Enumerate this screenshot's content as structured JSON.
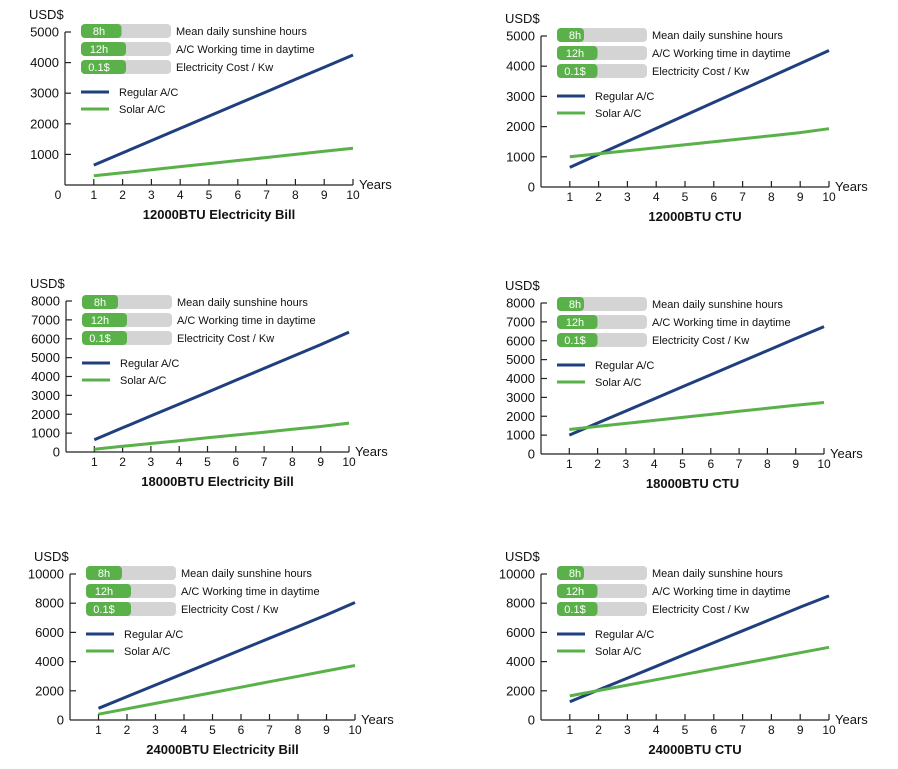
{
  "colors": {
    "regular": "#1f3f7f",
    "solar": "#5ab14a",
    "pill_bg": "#d4d4d4",
    "pill_fill": "#5ab14a"
  },
  "chart_data": [
    {
      "type": "line",
      "title": "12000BTU Electricity Bill",
      "ylabel": "USD$",
      "xlabel": "Years",
      "x": [
        1,
        2,
        3,
        4,
        5,
        6,
        7,
        8,
        9,
        10
      ],
      "xlim": [
        0,
        10
      ],
      "ylim": [
        0,
        5000
      ],
      "yticks": [
        1000,
        2000,
        3000,
        4000,
        5000
      ],
      "ytick_labels": [
        "1000",
        "2000",
        "3000",
        "4000",
        "5000"
      ],
      "xtick_labels": [
        "0",
        "1",
        "2",
        "3",
        "4",
        "5",
        "6",
        "7",
        "8",
        "9",
        "10"
      ],
      "legend": {
        "params": [
          {
            "value": "8h",
            "label": "Mean daily sunshine hours",
            "fill": 0.45
          },
          {
            "value": "12h",
            "label": "A/C Working time in daytime",
            "fill": 0.5
          },
          {
            "value": "0.1$",
            "label": "Electricity Cost / Kw",
            "fill": 0.5
          }
        ],
        "series_labels": [
          "Regular A/C",
          "Solar A/C"
        ]
      },
      "series": [
        {
          "name": "Regular A/C",
          "values": [
            650,
            1050,
            1450,
            1850,
            2250,
            2650,
            3050,
            3450,
            3850,
            4250
          ]
        },
        {
          "name": "Solar A/C",
          "values": [
            300,
            400,
            500,
            600,
            700,
            800,
            900,
            1000,
            1100,
            1200
          ]
        }
      ]
    },
    {
      "type": "line",
      "title": "12000BTU CTU",
      "ylabel": "USD$",
      "xlabel": "Years",
      "x": [
        1,
        2,
        3,
        4,
        5,
        6,
        7,
        8,
        9,
        10
      ],
      "xlim": [
        0,
        10
      ],
      "ylim": [
        0,
        5000
      ],
      "yticks": [
        0,
        1000,
        2000,
        3000,
        4000,
        5000
      ],
      "ytick_labels": [
        "0",
        "1000",
        "2000",
        "3000",
        "4000",
        "5000"
      ],
      "xtick_labels": [
        "1",
        "2",
        "3",
        "4",
        "5",
        "6",
        "7",
        "8",
        "9",
        "10"
      ],
      "legend": {
        "params": [
          {
            "value": "8h",
            "label": "Mean daily sunshine hours",
            "fill": 0.3
          },
          {
            "value": "12h",
            "label": "A/C Working time in daytime",
            "fill": 0.45
          },
          {
            "value": "0.1$",
            "label": "Electricity Cost / Kw",
            "fill": 0.45
          }
        ],
        "series_labels": [
          "Regular A/C",
          "Solar A/C"
        ]
      },
      "series": [
        {
          "name": "Regular A/C",
          "values": [
            650,
            1080,
            1510,
            1940,
            2370,
            2800,
            3230,
            3660,
            4090,
            4520
          ]
        },
        {
          "name": "Solar A/C",
          "values": [
            1000,
            1100,
            1200,
            1300,
            1400,
            1500,
            1600,
            1700,
            1800,
            1930
          ]
        }
      ]
    },
    {
      "type": "line",
      "title": "18000BTU Electricity Bill",
      "ylabel": "USD$",
      "xlabel": "Years",
      "x": [
        1,
        2,
        3,
        4,
        5,
        6,
        7,
        8,
        9,
        10
      ],
      "xlim": [
        0,
        10
      ],
      "ylim": [
        0,
        8000
      ],
      "yticks": [
        0,
        1000,
        2000,
        3000,
        4000,
        5000,
        6000,
        7000,
        8000
      ],
      "ytick_labels": [
        "0",
        "1000",
        "2000",
        "3000",
        "4000",
        "5000",
        "6000",
        "7000",
        "8000"
      ],
      "xtick_labels": [
        "1",
        "2",
        "3",
        "4",
        "5",
        "6",
        "7",
        "8",
        "9",
        "10"
      ],
      "legend": {
        "params": [
          {
            "value": "8h",
            "label": "Mean daily sunshine hours",
            "fill": 0.4
          },
          {
            "value": "12h",
            "label": "A/C Working time in daytime",
            "fill": 0.5
          },
          {
            "value": "0.1$",
            "label": "Electricity Cost / Kw",
            "fill": 0.5
          }
        ],
        "series_labels": [
          "Regular A/C",
          "Solar A/C"
        ]
      },
      "series": [
        {
          "name": "Regular A/C",
          "values": [
            650,
            1280,
            1910,
            2540,
            3170,
            3800,
            4430,
            5060,
            5690,
            6350
          ]
        },
        {
          "name": "Solar A/C",
          "values": [
            150,
            300,
            450,
            600,
            750,
            900,
            1050,
            1200,
            1350,
            1530
          ]
        }
      ]
    },
    {
      "type": "line",
      "title": "18000BTU CTU",
      "ylabel": "USD$",
      "xlabel": "Years",
      "x": [
        1,
        2,
        3,
        4,
        5,
        6,
        7,
        8,
        9,
        10
      ],
      "xlim": [
        0,
        10
      ],
      "ylim": [
        0,
        8000
      ],
      "yticks": [
        0,
        1000,
        2000,
        3000,
        4000,
        5000,
        6000,
        7000,
        8000
      ],
      "ytick_labels": [
        "0",
        "1000",
        "2000",
        "3000",
        "4000",
        "5000",
        "6000",
        "7000",
        "8000"
      ],
      "xtick_labels": [
        "1",
        "2",
        "3",
        "4",
        "5",
        "6",
        "7",
        "8",
        "9",
        "10"
      ],
      "legend": {
        "params": [
          {
            "value": "8h",
            "label": "Mean daily sunshine hours",
            "fill": 0.3
          },
          {
            "value": "12h",
            "label": "A/C Working time in daytime",
            "fill": 0.45
          },
          {
            "value": "0.1$",
            "label": "Electricity Cost / Kw",
            "fill": 0.45
          }
        ],
        "series_labels": [
          "Regular A/C",
          "Solar A/C"
        ]
      },
      "series": [
        {
          "name": "Regular A/C",
          "values": [
            1000,
            1640,
            2280,
            2920,
            3560,
            4200,
            4840,
            5480,
            6120,
            6750
          ]
        },
        {
          "name": "Solar A/C",
          "values": [
            1300,
            1460,
            1620,
            1780,
            1940,
            2100,
            2260,
            2420,
            2580,
            2730
          ]
        }
      ]
    },
    {
      "type": "line",
      "title": "24000BTU Electricity Bill",
      "ylabel": "USD$",
      "xlabel": "Years",
      "x": [
        1,
        2,
        3,
        4,
        5,
        6,
        7,
        8,
        9,
        10
      ],
      "xlim": [
        0,
        10
      ],
      "ylim": [
        0,
        10000
      ],
      "yticks": [
        0,
        2000,
        4000,
        6000,
        8000,
        10000
      ],
      "ytick_labels": [
        "0",
        "2000",
        "4000",
        "6000",
        "8000",
        "10000"
      ],
      "xtick_labels": [
        "1",
        "2",
        "3",
        "4",
        "5",
        "6",
        "7",
        "8",
        "9",
        "10"
      ],
      "legend": {
        "params": [
          {
            "value": "8h",
            "label": "Mean daily sunshine hours",
            "fill": 0.4
          },
          {
            "value": "12h",
            "label": "A/C Working time in daytime",
            "fill": 0.5
          },
          {
            "value": "0.1$",
            "label": "Electricity Cost / Kw",
            "fill": 0.5
          }
        ],
        "series_labels": [
          "Regular A/C",
          "Solar A/C"
        ]
      },
      "series": [
        {
          "name": "Regular A/C",
          "values": [
            800,
            1600,
            2400,
            3200,
            4000,
            4800,
            5600,
            6400,
            7200,
            8050
          ]
        },
        {
          "name": "Solar A/C",
          "values": [
            400,
            770,
            1140,
            1510,
            1880,
            2250,
            2620,
            2990,
            3360,
            3730
          ]
        }
      ]
    },
    {
      "type": "line",
      "title": "24000BTU CTU",
      "ylabel": "USD$",
      "xlabel": "Years",
      "x": [
        1,
        2,
        3,
        4,
        5,
        6,
        7,
        8,
        9,
        10
      ],
      "xlim": [
        0,
        10
      ],
      "ylim": [
        0,
        10000
      ],
      "yticks": [
        0,
        2000,
        4000,
        6000,
        8000,
        10000
      ],
      "ytick_labels": [
        "0",
        "2000",
        "4000",
        "6000",
        "8000",
        "10000"
      ],
      "xtick_labels": [
        "1",
        "2",
        "3",
        "4",
        "5",
        "6",
        "7",
        "8",
        "9",
        "10"
      ],
      "legend": {
        "params": [
          {
            "value": "8h",
            "label": "Mean daily sunshine hours",
            "fill": 0.3
          },
          {
            "value": "12h",
            "label": "A/C Working time in daytime",
            "fill": 0.45
          },
          {
            "value": "0.1$",
            "label": "Electricity Cost / Kw",
            "fill": 0.45
          }
        ],
        "series_labels": [
          "Regular A/C",
          "Solar A/C"
        ]
      },
      "series": [
        {
          "name": "Regular A/C",
          "values": [
            1250,
            2060,
            2870,
            3680,
            4490,
            5300,
            6110,
            6920,
            7730,
            8500
          ]
        },
        {
          "name": "Solar A/C",
          "values": [
            1650,
            2020,
            2390,
            2760,
            3130,
            3500,
            3870,
            4240,
            4610,
            4980
          ]
        }
      ]
    }
  ]
}
